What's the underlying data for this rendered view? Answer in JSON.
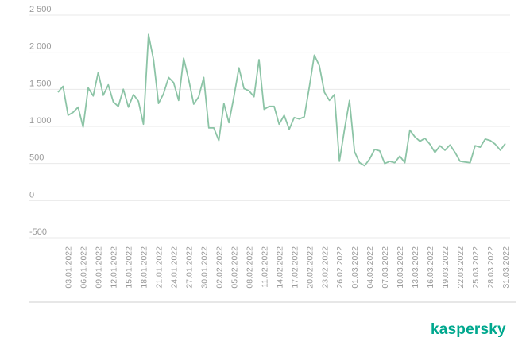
{
  "brand": {
    "logo_text": "kaspersky",
    "color": "#00a88e"
  },
  "chart_data": {
    "type": "line",
    "title": "",
    "xlabel": "",
    "ylabel": "",
    "ylim": [
      -500,
      2500
    ],
    "yticks": [
      -500,
      0,
      500,
      1000,
      1500,
      2000,
      2500
    ],
    "ytick_labels": [
      "-500",
      "0",
      "500",
      "1 000",
      "1 500",
      "2 000",
      "2 500"
    ],
    "grid": true,
    "legend": "none",
    "line_color": "#8cc4a6",
    "x": [
      "01.01.2022",
      "02.01.2022",
      "03.01.2022",
      "04.01.2022",
      "05.01.2022",
      "06.01.2022",
      "07.01.2022",
      "08.01.2022",
      "09.01.2022",
      "10.01.2022",
      "11.01.2022",
      "12.01.2022",
      "13.01.2022",
      "14.01.2022",
      "15.01.2022",
      "16.01.2022",
      "17.01.2022",
      "18.01.2022",
      "19.01.2022",
      "20.01.2022",
      "21.01.2022",
      "22.01.2022",
      "23.01.2022",
      "24.01.2022",
      "25.01.2022",
      "26.01.2022",
      "27.01.2022",
      "28.01.2022",
      "29.01.2022",
      "30.01.2022",
      "31.01.2022",
      "01.02.2022",
      "02.02.2022",
      "03.02.2022",
      "04.02.2022",
      "05.02.2022",
      "06.02.2022",
      "07.02.2022",
      "08.02.2022",
      "09.02.2022",
      "10.02.2022",
      "11.02.2022",
      "12.02.2022",
      "13.02.2022",
      "14.02.2022",
      "15.02.2022",
      "16.02.2022",
      "17.02.2022",
      "18.02.2022",
      "19.02.2022",
      "20.02.2022",
      "21.02.2022",
      "22.02.2022",
      "23.02.2022",
      "24.02.2022",
      "25.02.2022",
      "26.02.2022",
      "27.02.2022",
      "28.02.2022",
      "01.03.2022",
      "02.03.2022",
      "03.03.2022",
      "04.03.2022",
      "05.03.2022",
      "06.03.2022",
      "07.03.2022",
      "08.03.2022",
      "09.03.2022",
      "10.03.2022",
      "11.03.2022",
      "12.03.2022",
      "13.03.2022",
      "14.03.2022",
      "15.03.2022",
      "16.03.2022",
      "17.03.2022",
      "18.03.2022",
      "19.03.2022",
      "20.03.2022",
      "21.03.2022",
      "22.03.2022",
      "23.03.2022",
      "24.03.2022",
      "25.03.2022",
      "26.03.2022",
      "27.03.2022",
      "28.03.2022",
      "29.03.2022",
      "30.03.2022",
      "31.03.2022"
    ],
    "values": [
      1460,
      1540,
      1150,
      1190,
      1260,
      990,
      1520,
      1410,
      1730,
      1420,
      1560,
      1330,
      1270,
      1500,
      1260,
      1430,
      1340,
      1030,
      2240,
      1900,
      1310,
      1440,
      1660,
      1590,
      1350,
      1920,
      1630,
      1300,
      1400,
      1660,
      980,
      980,
      810,
      1310,
      1050,
      1400,
      1790,
      1510,
      1480,
      1400,
      1900,
      1230,
      1270,
      1270,
      1030,
      1150,
      960,
      1120,
      1100,
      1130,
      1530,
      1960,
      1820,
      1460,
      1350,
      1430,
      530,
      960,
      1350,
      660,
      510,
      470,
      560,
      690,
      670,
      500,
      530,
      510,
      600,
      510,
      950,
      860,
      800,
      840,
      760,
      650,
      740,
      680,
      750,
      650,
      530,
      520,
      510,
      740,
      720,
      830,
      810,
      760,
      680,
      770
    ],
    "x_tick_labels": [
      "03.01.2022",
      "06.01.2022",
      "09.01.2022",
      "12.01.2022",
      "15.01.2022",
      "18.01.2022",
      "21.01.2022",
      "24.01.2022",
      "27.01.2022",
      "30.01.2022",
      "02.02.2022",
      "05.02.2022",
      "08.02.2022",
      "11.02.2022",
      "14.02.2022",
      "17.02.2022",
      "20.02.2022",
      "23.02.2022",
      "26.02.2022",
      "01.03.2022",
      "04.03.2022",
      "07.03.2022",
      "10.03.2022",
      "13.03.2022",
      "16.03.2022",
      "19.03.2022",
      "22.03.2022",
      "25.03.2022",
      "28.03.2022",
      "31.03.2022"
    ]
  }
}
